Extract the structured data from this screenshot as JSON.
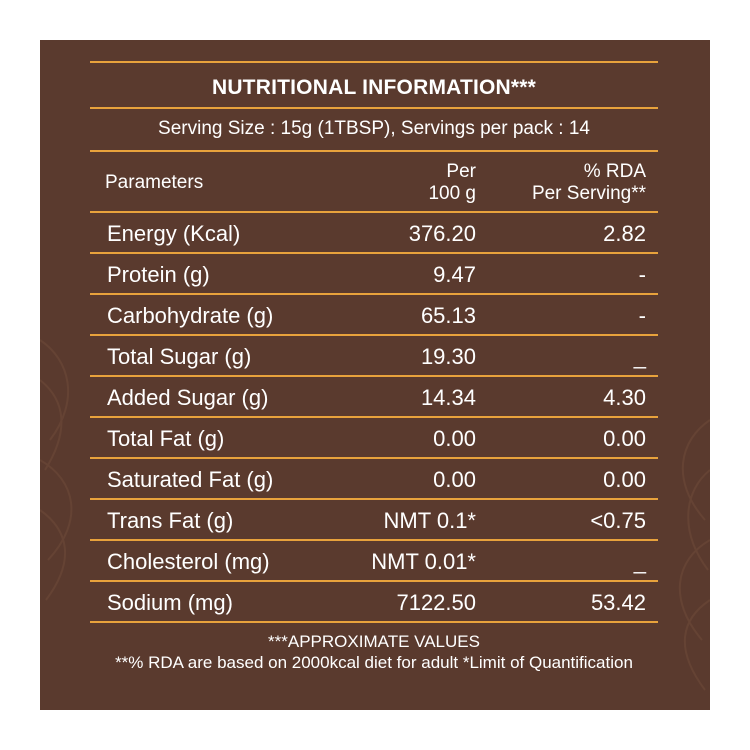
{
  "colors": {
    "background": "#5a3a2e",
    "rule": "#e8a23c",
    "text": "#ffffff"
  },
  "title": "NUTRITIONAL INFORMATION***",
  "serving": "Serving Size : 15g (1TBSP),  Servings per pack : 14",
  "header": {
    "param": "Parameters",
    "per_line1": "Per",
    "per_line2": "100 g",
    "rda_line1": "% RDA",
    "rda_line2": "Per Serving**"
  },
  "rows": [
    {
      "param": "Energy (Kcal)",
      "per100g": "376.20",
      "rda": "2.82"
    },
    {
      "param": "Protein (g)",
      "per100g": "9.47",
      "rda": "-"
    },
    {
      "param": "Carbohydrate (g)",
      "per100g": "65.13",
      "rda": "-"
    },
    {
      "param": "Total Sugar (g)",
      "per100g": "19.30",
      "rda": "_"
    },
    {
      "param": "Added Sugar (g)",
      "per100g": "14.34",
      "rda": "4.30"
    },
    {
      "param": "Total Fat (g)",
      "per100g": "0.00",
      "rda": "0.00"
    },
    {
      "param": "Saturated Fat (g)",
      "per100g": "0.00",
      "rda": "0.00"
    },
    {
      "param": "Trans Fat (g)",
      "per100g": "NMT 0.1*",
      "rda": "<0.75"
    },
    {
      "param": "Cholesterol (mg)",
      "per100g": "NMT 0.01*",
      "rda": "_"
    },
    {
      "param": "Sodium (mg)",
      "per100g": "7122.50",
      "rda": "53.42"
    }
  ],
  "footnotes": {
    "line1": "***APPROXIMATE VALUES",
    "line2": "**% RDA are based on 2000kcal diet for adult *Limit of Quantification"
  }
}
